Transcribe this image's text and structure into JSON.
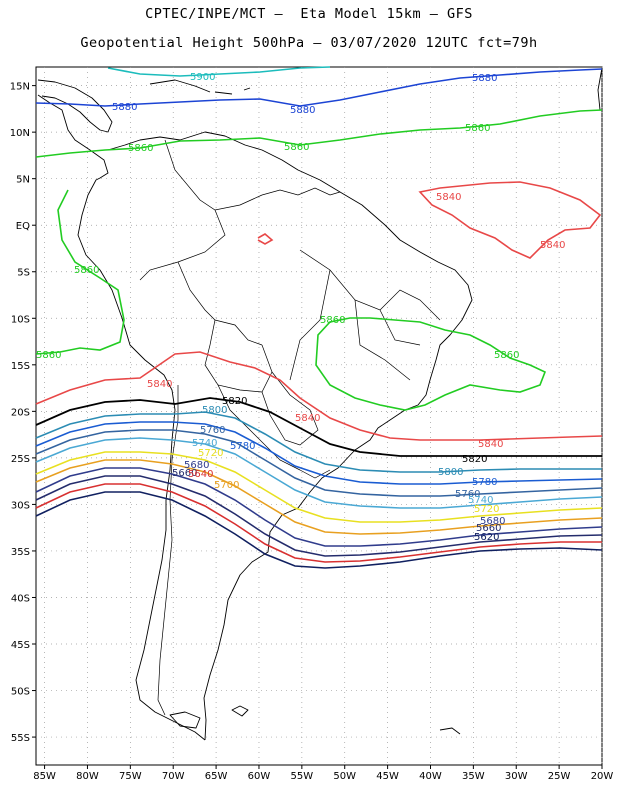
{
  "title": {
    "line1": "CPTEC/INPE/MCT –  Eta Model 15km – GFS",
    "line2": "Geopotential Height 500hPa – 03/07/2020 12UTC fct=79h"
  },
  "axes": {
    "lon_labels": [
      "85W",
      "80W",
      "75W",
      "70W",
      "65W",
      "60W",
      "55W",
      "50W",
      "45W",
      "40W",
      "35W",
      "30W",
      "25W",
      "20W"
    ],
    "lat_labels": [
      "15N",
      "10N",
      "5N",
      "EQ",
      "5S",
      "10S",
      "15S",
      "20S",
      "25S",
      "30S",
      "35S",
      "40S",
      "45S",
      "50S",
      "55S"
    ],
    "lon_range": [
      -86,
      -20
    ],
    "lat_range": [
      17,
      -58
    ],
    "grid": "dotted"
  },
  "colors": {
    "5900": "#1cbcbc",
    "5880": "#1c44d4",
    "5860": "#22cc22",
    "5840": "#e84848",
    "5820": "#000000",
    "5800": "#2c8cb4",
    "5780": "#1a5cd2",
    "5760": "#3464a0",
    "5740": "#4aa8d4",
    "5720": "#e8e020",
    "5700": "#e8a020",
    "5680": "#303c8c",
    "5660": "#242c6c",
    "5640": "#d83030",
    "5620": "#102060"
  },
  "contour_labels": [
    {
      "text": "5900",
      "level": "5900"
    },
    {
      "text": "5880",
      "level": "5880"
    },
    {
      "text": "5880",
      "level": "5880"
    },
    {
      "text": "5880",
      "level": "5880"
    },
    {
      "text": "5860",
      "level": "5860"
    },
    {
      "text": "5860",
      "level": "5860"
    },
    {
      "text": "5860",
      "level": "5860"
    },
    {
      "text": "5860",
      "level": "5860"
    },
    {
      "text": "5860",
      "level": "5860"
    },
    {
      "text": "5860",
      "level": "5860"
    },
    {
      "text": "5860",
      "level": "5860"
    },
    {
      "text": "5840",
      "level": "5840"
    },
    {
      "text": "5840",
      "level": "5840"
    },
    {
      "text": "5840",
      "level": "5840"
    },
    {
      "text": "5840",
      "level": "5840"
    },
    {
      "text": "5840",
      "level": "5840"
    },
    {
      "text": "5820",
      "level": "5820"
    },
    {
      "text": "5820",
      "level": "5820"
    },
    {
      "text": "5800",
      "level": "5800"
    },
    {
      "text": "5800",
      "level": "5800"
    },
    {
      "text": "5780",
      "level": "5780"
    },
    {
      "text": "5780",
      "level": "5780"
    },
    {
      "text": "5760",
      "level": "5760"
    },
    {
      "text": "5760",
      "level": "5760"
    },
    {
      "text": "5740",
      "level": "5740"
    },
    {
      "text": "5740",
      "level": "5740"
    },
    {
      "text": "5720",
      "level": "5720"
    },
    {
      "text": "5720",
      "level": "5720"
    },
    {
      "text": "5700",
      "level": "5700"
    },
    {
      "text": "5680",
      "level": "5680"
    },
    {
      "text": "5680",
      "level": "5680"
    },
    {
      "text": "5660",
      "level": "5660"
    },
    {
      "text": "5660",
      "level": "5660"
    },
    {
      "text": "5640",
      "level": "5640"
    },
    {
      "text": "5620",
      "level": "5620"
    }
  ]
}
